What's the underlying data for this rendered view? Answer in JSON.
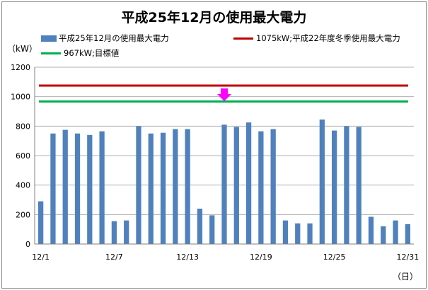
{
  "chart_data": {
    "type": "bar",
    "title": "平成25年12月の使用最大電力",
    "ylabel": "（kW）",
    "xlabel": "（日）",
    "ylim": [
      0,
      1200
    ],
    "yticks": [
      0,
      200,
      400,
      600,
      800,
      1000,
      1200
    ],
    "x_tick_labels": [
      "12/1",
      "12/7",
      "12/13",
      "12/19",
      "12/25",
      "12/31"
    ],
    "x_tick_index": [
      0,
      6,
      12,
      18,
      24,
      30
    ],
    "categories": [
      "12/1",
      "12/2",
      "12/3",
      "12/4",
      "12/5",
      "12/6",
      "12/7",
      "12/8",
      "12/9",
      "12/10",
      "12/11",
      "12/12",
      "12/13",
      "12/14",
      "12/15",
      "12/16",
      "12/17",
      "12/18",
      "12/19",
      "12/20",
      "12/21",
      "12/22",
      "12/23",
      "12/24",
      "12/25",
      "12/26",
      "12/27",
      "12/28",
      "12/29",
      "12/30",
      "12/31"
    ],
    "series": [
      {
        "name": "平成25年12月の使用最大電力",
        "color": "#4F81BD",
        "values": [
          290,
          750,
          775,
          750,
          740,
          765,
          155,
          160,
          800,
          750,
          755,
          780,
          780,
          240,
          195,
          810,
          795,
          825,
          765,
          780,
          160,
          140,
          140,
          845,
          770,
          800,
          795,
          185,
          120,
          160,
          135
        ]
      }
    ],
    "reference_lines": [
      {
        "name": "1075kW;平成22年度冬季使用最大電力",
        "value": 1075,
        "color": "#C00000"
      },
      {
        "name": "967kW;目標値",
        "value": 967,
        "color": "#00B050"
      }
    ],
    "marker": {
      "type": "down-arrow",
      "category_index": 15,
      "color": "#FF00FF"
    },
    "grid": true,
    "legend": "top"
  }
}
